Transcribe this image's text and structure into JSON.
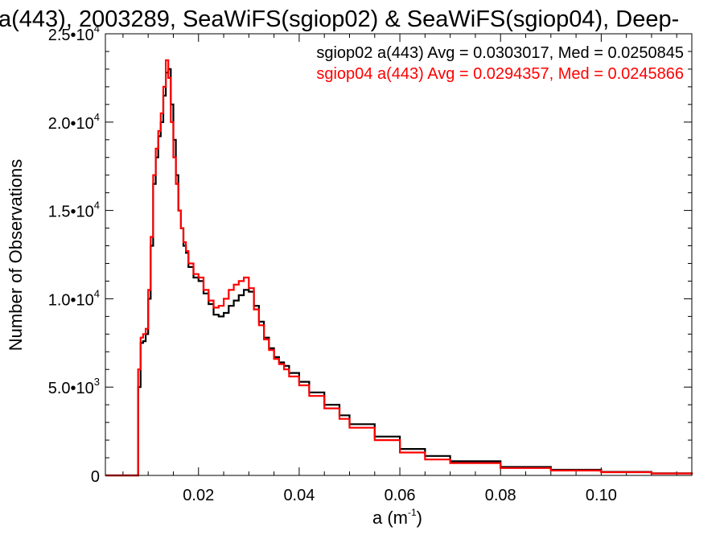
{
  "chart_data": {
    "type": "line",
    "title": "a(443), 2003289, SeaWiFS(sgiop02) & SeaWiFS(sgiop04), Deep-",
    "xlabel_main": "a (m",
    "xlabel_sup": "-1",
    "xlabel_close": ")",
    "ylabel": "Number of Observations",
    "xlim": [
      0.0015,
      0.118
    ],
    "ylim": [
      0,
      25000
    ],
    "step": true,
    "grid": false,
    "x_ticks": [
      {
        "value": 0.02,
        "label": "0.02"
      },
      {
        "value": 0.04,
        "label": "0.04"
      },
      {
        "value": 0.06,
        "label": "0.06"
      },
      {
        "value": 0.08,
        "label": "0.08"
      },
      {
        "value": 0.1,
        "label": "0.10"
      }
    ],
    "y_ticks": [
      {
        "value": 0,
        "base": "0",
        "exp": ""
      },
      {
        "value": 5000,
        "base": "5.0•10",
        "exp": "3"
      },
      {
        "value": 10000,
        "base": "1.0•10",
        "exp": "4"
      },
      {
        "value": 15000,
        "base": "1.5•10",
        "exp": "4"
      },
      {
        "value": 20000,
        "base": "2.0•10",
        "exp": "4"
      },
      {
        "value": 25000,
        "base": "2.5•10",
        "exp": "4"
      }
    ],
    "annotations": [
      "sgiop02 a(443) Avg = 0.0303017, Med = 0.0250845",
      "sgiop04 a(443) Avg = 0.0294357, Med = 0.0245866"
    ],
    "series": [
      {
        "color": "#000000",
        "x": [
          0.0015,
          0.007,
          0.0075,
          0.008,
          0.0085,
          0.009,
          0.0095,
          0.01,
          0.0105,
          0.011,
          0.0115,
          0.012,
          0.0125,
          0.013,
          0.0135,
          0.014,
          0.0145,
          0.015,
          0.0155,
          0.016,
          0.0165,
          0.017,
          0.0175,
          0.018,
          0.019,
          0.02,
          0.021,
          0.022,
          0.023,
          0.024,
          0.025,
          0.026,
          0.027,
          0.028,
          0.029,
          0.03,
          0.031,
          0.032,
          0.033,
          0.034,
          0.035,
          0.036,
          0.037,
          0.038,
          0.04,
          0.042,
          0.045,
          0.048,
          0.05,
          0.055,
          0.06,
          0.065,
          0.07,
          0.08,
          0.09,
          0.1,
          0.11,
          0.118
        ],
        "y": [
          0,
          0,
          0,
          5000,
          7500,
          7600,
          8000,
          10000,
          13000,
          16500,
          18000,
          19200,
          20000,
          21500,
          22800,
          23000,
          21000,
          19000,
          17000,
          15000,
          14000,
          13000,
          12600,
          11800,
          11200,
          11000,
          10300,
          9700,
          9100,
          9000,
          9200,
          9600,
          9900,
          10200,
          10500,
          10400,
          9600,
          8700,
          7800,
          7200,
          6700,
          6400,
          6200,
          5800,
          5300,
          4700,
          4000,
          3400,
          2900,
          2200,
          1500,
          1100,
          800,
          480,
          320,
          200,
          120,
          60
        ]
      },
      {
        "color": "#ff0000",
        "x": [
          0.0015,
          0.007,
          0.0075,
          0.008,
          0.0085,
          0.009,
          0.0095,
          0.01,
          0.0105,
          0.011,
          0.0115,
          0.012,
          0.0125,
          0.013,
          0.0135,
          0.014,
          0.0145,
          0.015,
          0.0155,
          0.016,
          0.0165,
          0.017,
          0.0175,
          0.018,
          0.019,
          0.02,
          0.021,
          0.022,
          0.023,
          0.024,
          0.025,
          0.026,
          0.027,
          0.028,
          0.029,
          0.03,
          0.031,
          0.032,
          0.033,
          0.034,
          0.035,
          0.036,
          0.037,
          0.038,
          0.04,
          0.042,
          0.045,
          0.048,
          0.05,
          0.055,
          0.06,
          0.065,
          0.07,
          0.08,
          0.09,
          0.1,
          0.11,
          0.118
        ],
        "y": [
          0,
          0,
          0,
          6000,
          7800,
          8000,
          8300,
          10500,
          13500,
          17000,
          18500,
          19500,
          20500,
          22000,
          23500,
          22500,
          20000,
          18000,
          16500,
          15000,
          14000,
          13200,
          12700,
          12000,
          11400,
          11200,
          10500,
          9900,
          9500,
          9600,
          10000,
          10500,
          10800,
          11000,
          11200,
          10600,
          9400,
          8500,
          7700,
          7100,
          6600,
          6300,
          6000,
          5600,
          5100,
          4500,
          3800,
          3200,
          2700,
          2000,
          1300,
          900,
          700,
          420,
          280,
          180,
          110,
          50
        ]
      }
    ]
  }
}
